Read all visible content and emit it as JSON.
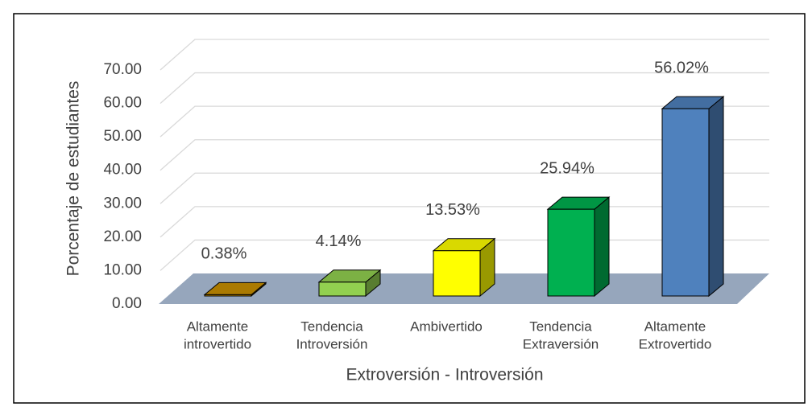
{
  "chart_data": {
    "type": "bar3d",
    "categories": [
      [
        "Altamente",
        "introvertido"
      ],
      [
        "Tendencia",
        "Introversión"
      ],
      [
        "Ambivertido"
      ],
      [
        "Tendencia",
        "Extraversión"
      ],
      [
        "Altamente",
        "Extrovertido"
      ]
    ],
    "values": [
      0.38,
      4.14,
      13.53,
      25.94,
      56.02
    ],
    "value_labels": [
      "0.38%",
      "4.14%",
      "13.53%",
      "25.94%",
      "56.02%"
    ],
    "colors": [
      "#c98f00",
      "#92d050",
      "#ffff00",
      "#00b050",
      "#4f81bd"
    ],
    "ylim": [
      0,
      70
    ],
    "yticks": [
      {
        "value": 0,
        "label": "0.00"
      },
      {
        "value": 10,
        "label": "10.00"
      },
      {
        "value": 20,
        "label": "20.00"
      },
      {
        "value": 30,
        "label": "30.00"
      },
      {
        "value": 40,
        "label": "40.00"
      },
      {
        "value": 50,
        "label": "50.00"
      },
      {
        "value": 60,
        "label": "60.00"
      },
      {
        "value": 70,
        "label": "70.00"
      }
    ],
    "xlabel": "Extroversión - Introversión",
    "ylabel": "Porcentaje de estudiantes",
    "grid": true
  }
}
